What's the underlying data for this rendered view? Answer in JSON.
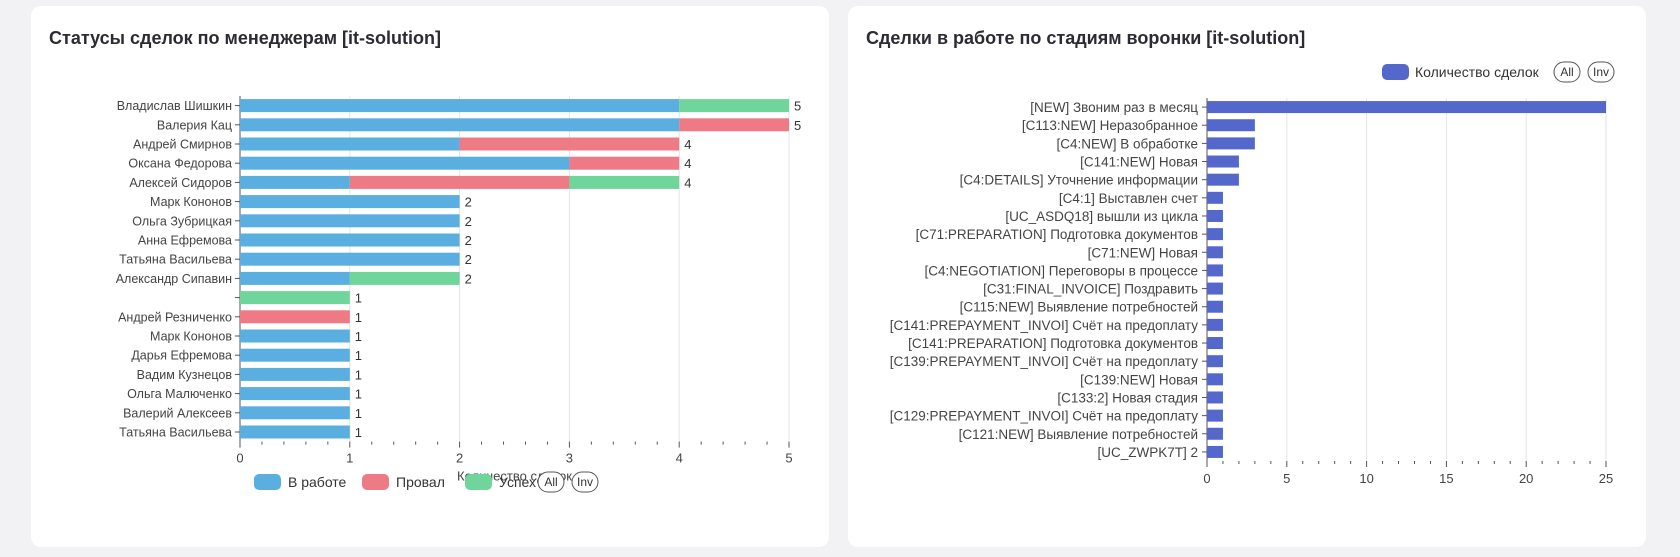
{
  "charts": [
    {
      "title": "Статусы сделок по менеджерам [it-solution]"
    },
    {
      "title": "Сделки в работе по стадиям воронки [it-solution]"
    }
  ],
  "colors": {
    "work": "#5aafe0",
    "fail": "#ee7a86",
    "success": "#6fd59a",
    "funnel": "#5468cc",
    "grid": "#e3e3ea",
    "axis": "#555555",
    "text": "#444444"
  },
  "chart_data": [
    {
      "type": "bar",
      "orientation": "horizontal",
      "stacked": true,
      "title": "Статусы сделок по менеджерам [it-solution]",
      "xlabel": "Количество сделок",
      "xlim": [
        0,
        5
      ],
      "xticks": [
        "0",
        "1",
        "2",
        "3",
        "4",
        "5"
      ],
      "grid": true,
      "legend_position": "bottom",
      "legend_buttons": [
        "All",
        "Inv"
      ],
      "categories": [
        "Владислав Шишкин",
        "Валерия Кац",
        "Андрей Смирнов",
        "Оксана Федорова",
        "Алексей Сидоров",
        "Марк Кононов",
        "Ольга Зубрицкая",
        "Анна Ефремова",
        "Татьяна Васильева",
        "Александр Сипавин",
        "",
        "Андрей Резниченко",
        "Марк Кононов",
        "Дарья Ефремова",
        "Вадим Кузнецов",
        "Ольга Малюченко",
        "Валерий Алексеев",
        "Татьяна Васильева"
      ],
      "series": [
        {
          "name": "В работе",
          "color": "#5aafe0",
          "values": [
            4,
            4,
            2,
            3,
            1,
            2,
            2,
            2,
            2,
            1,
            0,
            0,
            1,
            1,
            1,
            1,
            1,
            1
          ]
        },
        {
          "name": "Провал",
          "color": "#ee7a86",
          "values": [
            0,
            1,
            2,
            1,
            2,
            0,
            0,
            0,
            0,
            0,
            0,
            1,
            0,
            0,
            0,
            0,
            0,
            0
          ]
        },
        {
          "name": "Успех",
          "color": "#6fd59a",
          "values": [
            1,
            0,
            0,
            0,
            1,
            0,
            0,
            0,
            0,
            1,
            1,
            0,
            0,
            0,
            0,
            0,
            0,
            0
          ]
        }
      ],
      "totals": [
        "5",
        "5",
        "4",
        "4",
        "4",
        "2",
        "2",
        "2",
        "2",
        "2",
        "1",
        "1",
        "1",
        "1",
        "1",
        "1",
        "1",
        "1"
      ]
    },
    {
      "type": "bar",
      "orientation": "horizontal",
      "title": "Сделки в работе по стадиям воронки [it-solution]",
      "xlabel": "",
      "xlim": [
        0,
        25
      ],
      "xticks": [
        "0",
        "5",
        "10",
        "15",
        "20",
        "25"
      ],
      "grid": true,
      "legend_position": "top-right",
      "legend_buttons": [
        "All",
        "Inv"
      ],
      "categories": [
        "[NEW] Звоним раз в месяц",
        "[C113:NEW] Неразобранное",
        "[C4:NEW] В обработке",
        "[C141:NEW] Новая",
        "[C4:DETAILS] Уточнение информации",
        "[C4:1] Выставлен счет",
        "[UC_ASDQ18] вышли из цикла",
        "[C71:PREPARATION] Подготовка документов",
        "[C71:NEW] Новая",
        "[C4:NEGOTIATION] Переговоры в процессе",
        "[C31:FINAL_INVOICE] Поздравить",
        "[C115:NEW] Выявление потребностей",
        "[C141:PREPAYMENT_INVOI] Счёт на предоплату",
        "[C141:PREPARATION] Подготовка документов",
        "[C139:PREPAYMENT_INVOI] Счёт на предоплату",
        "[C139:NEW] Новая",
        "[C133:2] Новая стадия",
        "[C129:PREPAYMENT_INVOI] Счёт на предоплату",
        "[C121:NEW] Выявление потребностей",
        "[UC_ZWPK7T] 2"
      ],
      "series": [
        {
          "name": "Количество сделок",
          "color": "#5468cc",
          "values": [
            25,
            3,
            3,
            2,
            2,
            1,
            1,
            1,
            1,
            1,
            1,
            1,
            1,
            1,
            1,
            1,
            1,
            1,
            1,
            1
          ]
        }
      ]
    }
  ]
}
